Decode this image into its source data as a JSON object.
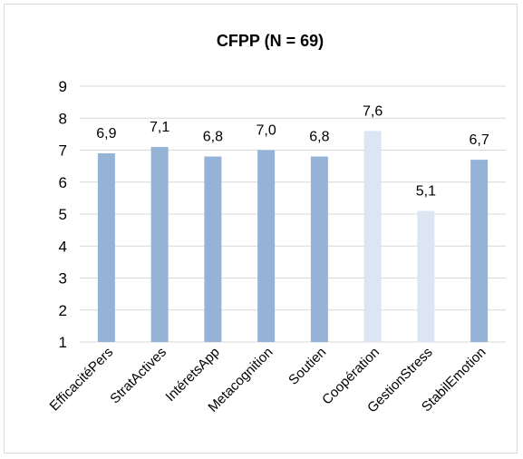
{
  "chart_data": {
    "type": "bar",
    "title": "CFPP (N = 69)",
    "categories": [
      "EfficacitéPers",
      "StratActives",
      "IntéretsApp",
      "Metacognition",
      "Soutien",
      "Coopération",
      "GestionStress",
      "StabilEmotion"
    ],
    "values": [
      6.9,
      7.1,
      6.8,
      7.0,
      6.8,
      7.6,
      5.1,
      6.7
    ],
    "data_labels": [
      "6,9",
      "7,1",
      "6,8",
      "7,0",
      "6,8",
      "7,6",
      "5,1",
      "6,7"
    ],
    "bar_colors": [
      "#95b3d7",
      "#95b3d7",
      "#95b3d7",
      "#95b3d7",
      "#95b3d7",
      "#dce6f2",
      "#dce6f2",
      "#95b3d7"
    ],
    "ylim": [
      1,
      9
    ],
    "yticks": [
      "1",
      "2",
      "3",
      "4",
      "5",
      "6",
      "7",
      "8",
      "9"
    ],
    "grid": true,
    "gridline_color": "#d9d9d9",
    "xlabel": "",
    "ylabel": ""
  }
}
